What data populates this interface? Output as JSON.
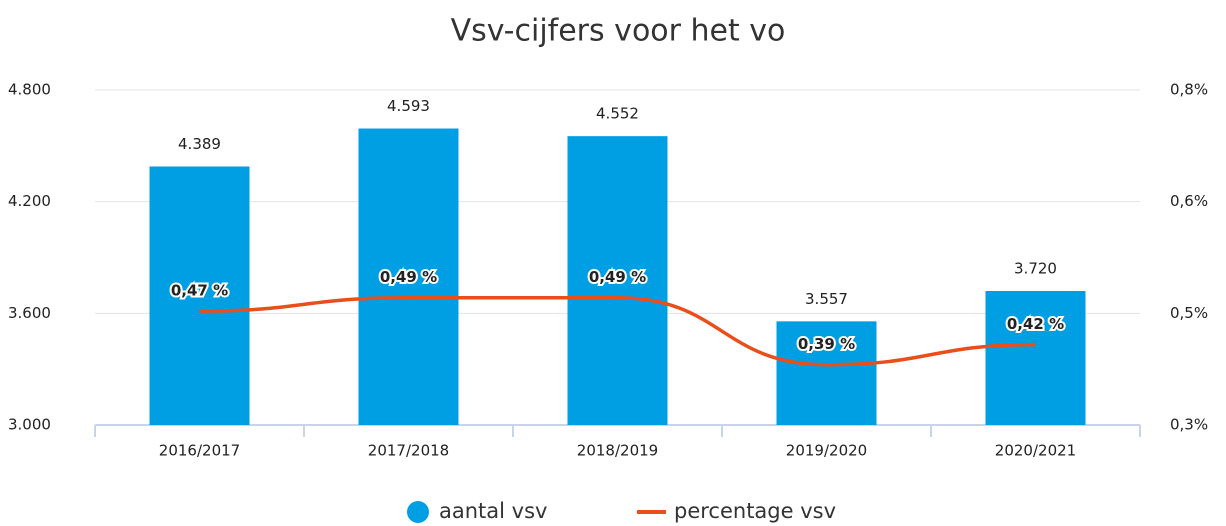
{
  "chart_data": {
    "type": "bar+line",
    "title": "Vsv-cijfers voor het vo",
    "categories": [
      "2016/2017",
      "2017/2018",
      "2018/2019",
      "2019/2020",
      "2020/2021"
    ],
    "series": [
      {
        "name": "aantal vsv",
        "type": "bar",
        "color": "#009fe3",
        "values": [
          4389,
          4593,
          4552,
          3557,
          3720
        ],
        "value_labels": [
          "4.389",
          "4.593",
          "4.552",
          "3.557",
          "3.720"
        ]
      },
      {
        "name": "percentage vsv",
        "type": "line",
        "axis": "y2",
        "color": "#e94e1b",
        "values": [
          0.47,
          0.49,
          0.49,
          0.39,
          0.42
        ],
        "value_labels": [
          "0,47 %",
          "0,49 %",
          "0,49 %",
          "0,39 %",
          "0,42 %"
        ]
      }
    ],
    "ylim": [
      3000,
      4800
    ],
    "yticks": [
      {
        "value": 3000,
        "label": "3.000"
      },
      {
        "value": 3600,
        "label": "3.600"
      },
      {
        "value": 4200,
        "label": "4.200"
      },
      {
        "value": 4800,
        "label": "4.800"
      }
    ],
    "y2lim": [
      0.3,
      0.8
    ],
    "y2ticks": [
      {
        "value": 0.3,
        "label": "0,3%"
      },
      {
        "value": 0.4667,
        "label": "0,5%"
      },
      {
        "value": 0.6333,
        "label": "0,6%"
      },
      {
        "value": 0.8,
        "label": "0,8%"
      }
    ],
    "grid": true,
    "legend": "bottom"
  }
}
